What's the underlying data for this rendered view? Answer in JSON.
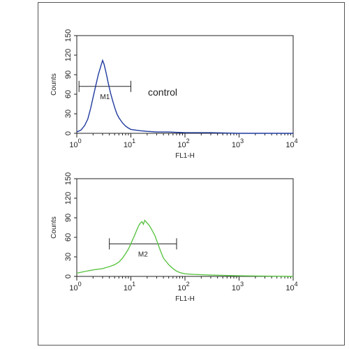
{
  "chart_data": [
    {
      "type": "line",
      "xlabel": "FL1-H",
      "ylabel": "Counts",
      "xscale": "log",
      "xlim": [
        1,
        10000
      ],
      "ylim": [
        0,
        150
      ],
      "x_ticks": [
        {
          "base": "10",
          "exp": "0"
        },
        {
          "base": "10",
          "exp": "1"
        },
        {
          "base": "10",
          "exp": "2"
        },
        {
          "base": "10",
          "exp": "3"
        },
        {
          "base": "10",
          "exp": "4"
        }
      ],
      "y_ticks": [
        "0",
        "30",
        "60",
        "90",
        "120",
        "150"
      ],
      "annotation": "control",
      "gate": {
        "label": "M1",
        "x_start": 1.1,
        "x_end": 10,
        "y": 72
      },
      "color": "#1f3a9e",
      "series": [
        {
          "x": [
            1.0,
            1.2,
            1.4,
            1.6,
            1.8,
            2.0,
            2.2,
            2.5,
            2.8,
            3.0,
            3.2,
            3.5,
            3.8,
            4.2,
            4.6,
            5.0,
            5.5,
            6.0,
            7.0,
            8.0,
            9.0,
            10,
            12,
            15,
            20,
            30,
            50,
            100,
            300,
            1000,
            10000
          ],
          "y": [
            2,
            5,
            12,
            22,
            38,
            55,
            70,
            90,
            104,
            112,
            106,
            92,
            78,
            62,
            50,
            40,
            30,
            24,
            16,
            11,
            8,
            6,
            5,
            4,
            3,
            2,
            2,
            1,
            1,
            0,
            0
          ]
        }
      ]
    },
    {
      "type": "line",
      "xlabel": "FL1-H",
      "ylabel": "Counts",
      "xscale": "log",
      "xlim": [
        1,
        10000
      ],
      "ylim": [
        0,
        150
      ],
      "x_ticks": [
        {
          "base": "10",
          "exp": "0"
        },
        {
          "base": "10",
          "exp": "1"
        },
        {
          "base": "10",
          "exp": "2"
        },
        {
          "base": "10",
          "exp": "3"
        },
        {
          "base": "10",
          "exp": "4"
        }
      ],
      "y_ticks": [
        "0",
        "30",
        "60",
        "90",
        "120",
        "150"
      ],
      "gate": {
        "label": "M2",
        "x_start": 4,
        "x_end": 70,
        "y": 50
      },
      "color": "#5cc444",
      "series": [
        {
          "x": [
            1.0,
            1.5,
            2.0,
            3.0,
            4.0,
            5.0,
            6.0,
            7.0,
            8.0,
            9.0,
            10,
            11,
            12,
            13,
            14,
            15,
            16,
            17,
            18,
            20,
            22,
            25,
            28,
            30,
            35,
            40,
            50,
            60,
            70,
            80,
            100,
            150,
            300,
            1000,
            10000
          ],
          "y": [
            5,
            8,
            10,
            12,
            15,
            18,
            22,
            28,
            35,
            42,
            50,
            58,
            65,
            72,
            78,
            82,
            84,
            80,
            86,
            82,
            78,
            70,
            62,
            55,
            40,
            28,
            18,
            12,
            8,
            6,
            4,
            3,
            2,
            1,
            0
          ]
        }
      ]
    }
  ]
}
